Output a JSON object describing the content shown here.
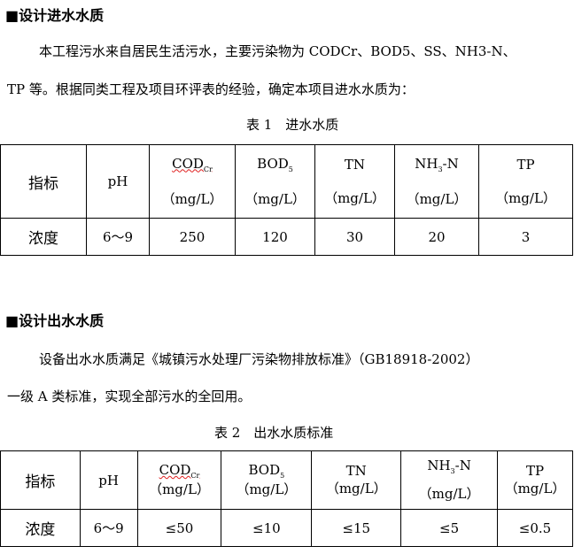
{
  "section1": {
    "heading": "■设计进水水质",
    "para_line1": "本工程污水来自居民生活污水，主要污染物为 CODCr、BOD5、SS、NH3-N、",
    "para_line2": "TP 等。根据同类工程及项目环评表的经验，确定本项目进水水质为：",
    "caption": "表 1　进水水质",
    "table": {
      "header": {
        "label": "指标",
        "ph": "pH",
        "cod": "COD",
        "cod_sub": "Cr",
        "bod": "BOD",
        "bod_sub": "5",
        "tn": "TN",
        "nh": "NH",
        "nh_sub": "3",
        "nh_suffix": "-N",
        "tp": "TP",
        "unit": "（mg/L）"
      },
      "row": {
        "label": "浓度",
        "ph": "6～9",
        "cod": "250",
        "bod": "120",
        "tn": "30",
        "nh": "20",
        "tp": "3"
      }
    }
  },
  "section2": {
    "heading": "■设计出水水质",
    "para_line1": "设备出水水质满足《城镇污水处理厂污染物排放标准》（GB18918-2002）",
    "para_line2": "一级 A 类标准，实现全部污水的全回用。",
    "caption": "表 2　出水水质标准",
    "table": {
      "header": {
        "label": "指标",
        "ph": "pH",
        "cod": "COD",
        "cod_sub": "Cr",
        "bod": "BOD",
        "bod_sub": "5",
        "tn": "TN",
        "nh": "NH",
        "nh_sub": "3",
        "nh_suffix": "-N",
        "tp": "TP",
        "unit": "（mg/L）"
      },
      "row": {
        "label": "浓度",
        "ph": "6～9",
        "cod": "≤50",
        "bod": "≤10",
        "tn": "≤15",
        "nh": "≤5",
        "tp": "≤0.5"
      }
    }
  }
}
